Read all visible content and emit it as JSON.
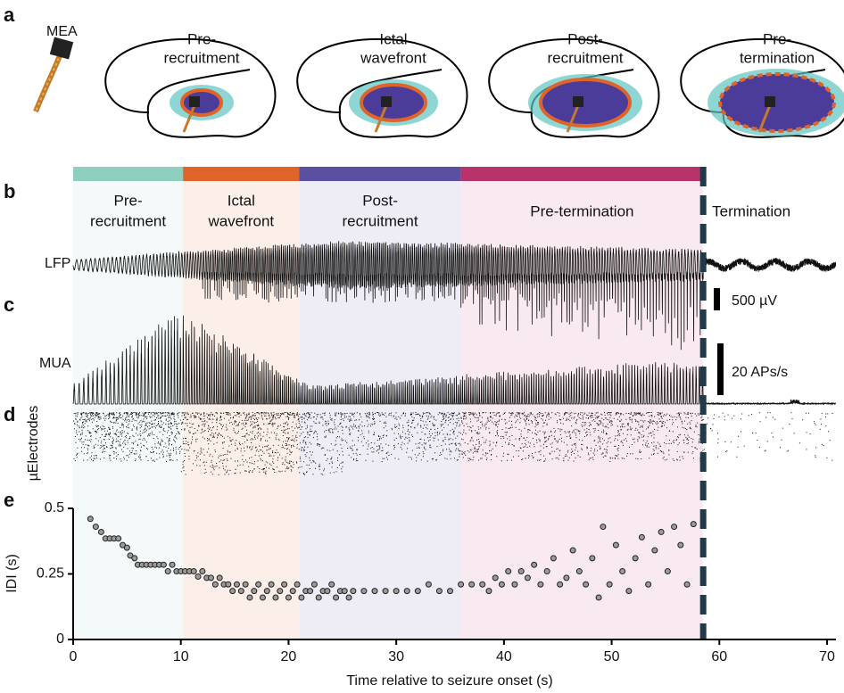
{
  "panel_letters": [
    "a",
    "b",
    "c",
    "d",
    "e"
  ],
  "panel_a": {
    "device_label": "MEA",
    "stages": [
      {
        "lines": [
          "Pre-",
          "recruitment"
        ],
        "color": "#8ecfc0"
      },
      {
        "lines": [
          "Ictal",
          "wavefront"
        ],
        "color": "#e0632a"
      },
      {
        "lines": [
          "Post-",
          "recruitment"
        ],
        "color": "#5a4fa0"
      },
      {
        "lines": [
          "Pre-",
          "termination"
        ],
        "color": "#b8336a"
      }
    ]
  },
  "phases": [
    {
      "lines": [
        "Pre-",
        "recruitment"
      ],
      "start": 0,
      "end": 10.2,
      "color": "#8ecfc0"
    },
    {
      "lines": [
        "Ictal",
        "wavefront"
      ],
      "start": 10.2,
      "end": 21,
      "color": "#e0632a"
    },
    {
      "lines": [
        "Post-",
        "recruitment"
      ],
      "start": 21,
      "end": 36,
      "color": "#5a4fa0"
    },
    {
      "lines": [
        "Pre-termination"
      ],
      "start": 36,
      "end": 58.5,
      "color": "#b8336a"
    }
  ],
  "termination": {
    "label": "Termination",
    "time": 58.5,
    "color": "#1f3a4a"
  },
  "trace_labels": {
    "lfp": "LFP",
    "mua": "MUA",
    "raster": "µElectrodes"
  },
  "scale_bars": {
    "lfp": "500 µV",
    "mua": "20 APs/s"
  },
  "chart_data": {
    "type": "scatter",
    "xlabel": "Time relative to seizure onset (s)",
    "ylabel": "IDI (s)",
    "xlim": [
      0,
      70
    ],
    "ylim": [
      0,
      0.5
    ],
    "xticks": [
      0,
      10,
      20,
      30,
      40,
      50,
      60,
      70
    ],
    "yticks": [
      0,
      0.25,
      0.5
    ],
    "color": "#9a9a9a",
    "x": [
      1.6,
      2.1,
      2.6,
      3.0,
      3.4,
      3.8,
      4.2,
      4.6,
      5.0,
      5.3,
      5.7,
      6.0,
      6.4,
      6.8,
      7.2,
      7.6,
      8.0,
      8.4,
      8.8,
      9.2,
      9.6,
      10.0,
      10.4,
      10.8,
      11.2,
      11.6,
      12.0,
      12.4,
      12.8,
      13.2,
      13.6,
      14.0,
      14.4,
      14.8,
      15.2,
      15.6,
      16.0,
      16.4,
      16.8,
      17.2,
      17.6,
      18.0,
      18.4,
      18.8,
      19.2,
      19.6,
      20.0,
      20.4,
      20.8,
      21.2,
      21.6,
      22.0,
      22.4,
      22.8,
      23.2,
      23.6,
      24.0,
      24.4,
      24.8,
      25.2,
      25.6,
      26.0,
      27,
      28,
      29,
      30,
      31,
      32,
      33,
      34,
      35,
      36,
      37,
      38,
      38.6,
      39.2,
      39.8,
      40.4,
      41,
      41.6,
      42.2,
      42.8,
      43.4,
      44,
      44.6,
      45.2,
      45.8,
      46.4,
      47,
      47.6,
      48.2,
      48.8,
      49.2,
      49.8,
      50.4,
      51,
      51.6,
      52.2,
      52.8,
      53.4,
      54,
      54.6,
      55.2,
      55.8,
      56.4,
      57,
      57.6
    ],
    "values": [
      0.46,
      0.43,
      0.41,
      0.385,
      0.385,
      0.385,
      0.385,
      0.36,
      0.35,
      0.32,
      0.31,
      0.285,
      0.285,
      0.285,
      0.285,
      0.285,
      0.285,
      0.285,
      0.26,
      0.285,
      0.26,
      0.26,
      0.26,
      0.26,
      0.26,
      0.24,
      0.26,
      0.235,
      0.235,
      0.21,
      0.235,
      0.21,
      0.21,
      0.185,
      0.21,
      0.185,
      0.21,
      0.16,
      0.185,
      0.21,
      0.16,
      0.185,
      0.21,
      0.16,
      0.185,
      0.21,
      0.16,
      0.185,
      0.21,
      0.16,
      0.185,
      0.185,
      0.21,
      0.16,
      0.185,
      0.185,
      0.21,
      0.16,
      0.185,
      0.185,
      0.16,
      0.185,
      0.185,
      0.185,
      0.185,
      0.185,
      0.185,
      0.185,
      0.21,
      0.185,
      0.185,
      0.21,
      0.21,
      0.21,
      0.185,
      0.235,
      0.21,
      0.26,
      0.21,
      0.26,
      0.235,
      0.285,
      0.21,
      0.26,
      0.31,
      0.21,
      0.235,
      0.34,
      0.26,
      0.21,
      0.31,
      0.16,
      0.43,
      0.21,
      0.36,
      0.26,
      0.185,
      0.31,
      0.39,
      0.21,
      0.34,
      0.41,
      0.26,
      0.43,
      0.36,
      0.21,
      0.44
    ]
  }
}
